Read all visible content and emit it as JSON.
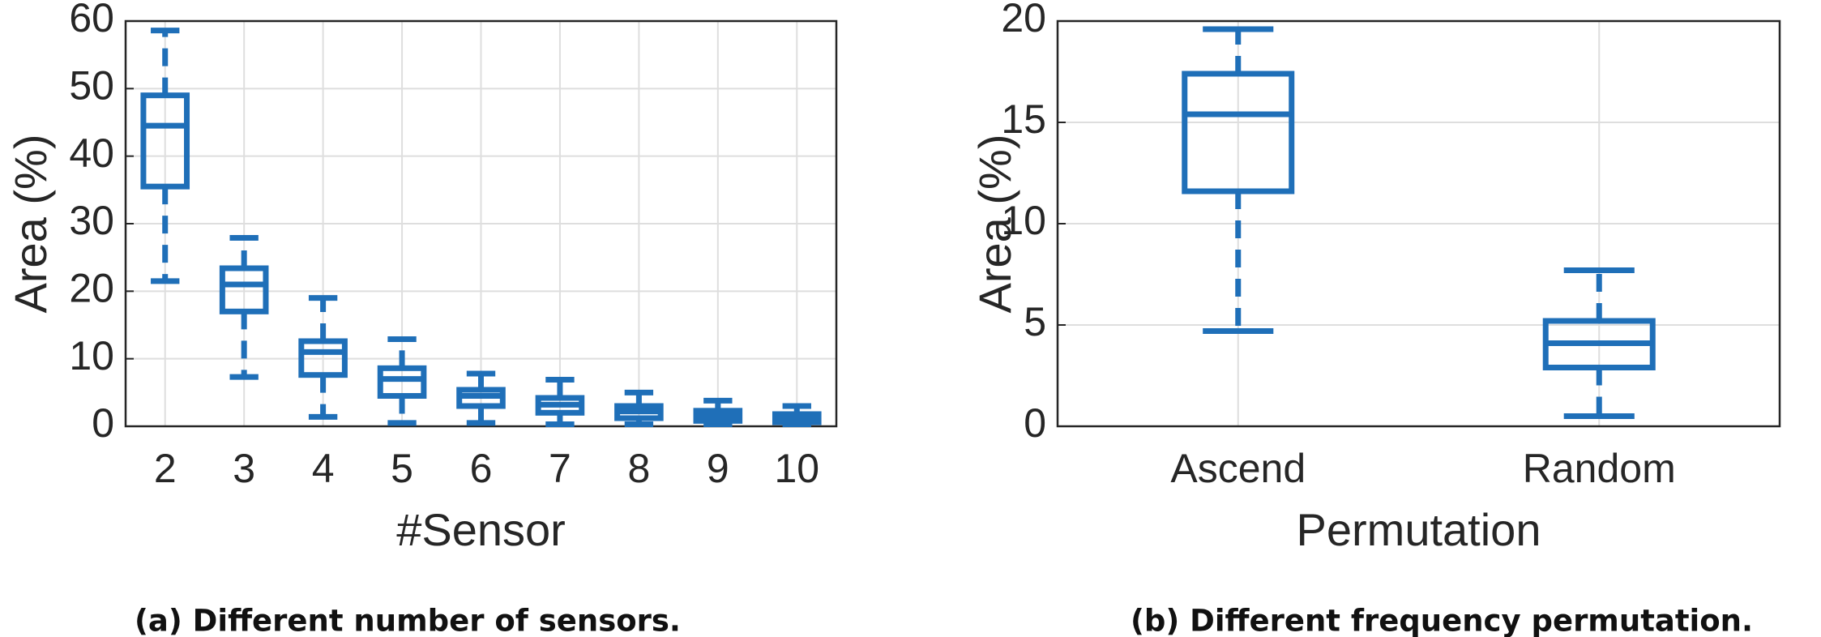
{
  "chart_data": [
    {
      "type": "box",
      "xlabel": "#Sensor",
      "ylabel": "Area (%)",
      "caption": "(a) Different number of sensors.",
      "categories": [
        "2",
        "3",
        "4",
        "5",
        "6",
        "7",
        "8",
        "9",
        "10"
      ],
      "whisker_low": [
        21.5,
        7.3,
        1.4,
        0.5,
        0.5,
        0.3,
        0.3,
        0.3,
        0.3
      ],
      "q1": [
        35.5,
        17,
        7.6,
        4.5,
        3,
        2,
        1.2,
        0.8,
        0.6
      ],
      "median": [
        44.5,
        21,
        11,
        7,
        4.5,
        3.2,
        2.2,
        1.5,
        1.2
      ],
      "q3": [
        49,
        23.4,
        12.6,
        8.6,
        5.4,
        4.2,
        3,
        2.3,
        1.8
      ],
      "whisker_high": [
        58.6,
        27.9,
        19,
        12.9,
        7.8,
        6.9,
        5,
        3.8,
        3
      ],
      "color": "#1f6fb8",
      "ylim": [
        0,
        60
      ],
      "yticks": [
        0,
        10,
        20,
        30,
        40,
        50,
        60
      ],
      "grid": true
    },
    {
      "type": "box",
      "xlabel": "Permutation",
      "ylabel": "Area (%)",
      "caption": "(b) Different frequency permutation.",
      "categories": [
        "Ascend",
        "Random"
      ],
      "whisker_low": [
        4.7,
        0.5
      ],
      "q1": [
        11.6,
        2.9
      ],
      "median": [
        15.4,
        4.1
      ],
      "q3": [
        17.4,
        5.2
      ],
      "whisker_high": [
        19.6,
        7.7
      ],
      "color": "#1f6fb8",
      "ylim": [
        0,
        20
      ],
      "yticks": [
        0,
        5,
        10,
        15,
        20
      ],
      "grid": true
    }
  ]
}
